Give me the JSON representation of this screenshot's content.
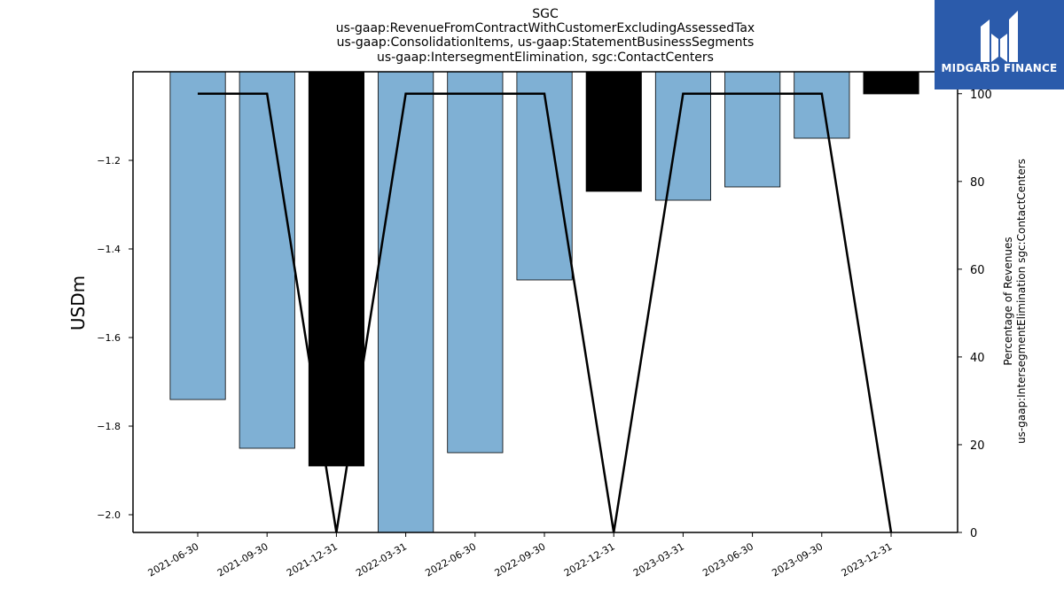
{
  "logo": {
    "text": "MIDGARD FINANCE",
    "background": "#2b5bab"
  },
  "chart_data": {
    "type": "bar",
    "title_lines": [
      "SGC",
      "us-gaap:RevenueFromContractWithCustomerExcludingAssessedTax",
      "us-gaap:ConsolidationItems, us-gaap:StatementBusinessSegments",
      "us-gaap:IntersegmentElimination, sgc:ContactCenters"
    ],
    "ylabel": "USDm",
    "ylabel_right_lines": [
      "Percentage of Revenues",
      "us-gaap:IntersegmentElimination sgc:ContactCenters"
    ],
    "categories": [
      "2021-06-30",
      "2021-09-30",
      "2021-12-31",
      "2022-03-31",
      "2022-06-30",
      "2022-09-30",
      "2022-12-31",
      "2023-03-31",
      "2023-06-30",
      "2023-09-30",
      "2023-12-31"
    ],
    "series": [
      {
        "type": "bar",
        "axis": "left",
        "values": [
          -1.74,
          -1.85,
          -1.89,
          -2.04,
          -1.86,
          -1.47,
          -1.27,
          -1.29,
          -1.26,
          -1.15,
          -1.05
        ],
        "highlight": [
          false,
          false,
          true,
          false,
          false,
          false,
          true,
          false,
          false,
          false,
          true
        ]
      },
      {
        "type": "line",
        "axis": "right",
        "values": [
          100,
          100,
          0,
          100,
          100,
          100,
          0,
          100,
          100,
          100,
          0
        ]
      }
    ],
    "ylim": [
      -2.04,
      -1.0
    ],
    "yticks": [
      "−1.2",
      "−1.4",
      "−1.6",
      "−1.8",
      "−2.0"
    ],
    "yticks_values": [
      -1.2,
      -1.4,
      -1.6,
      -1.8,
      -2.0
    ],
    "y2lim": [
      0,
      105
    ],
    "y2ticks": [
      "0",
      "20",
      "40",
      "60",
      "80",
      "100"
    ],
    "y2ticks_values": [
      0,
      20,
      40,
      60,
      80,
      100
    ],
    "colors": {
      "bar": "#7fb0d4",
      "highlight": "#000000",
      "line": "#000000"
    },
    "grid": false
  }
}
